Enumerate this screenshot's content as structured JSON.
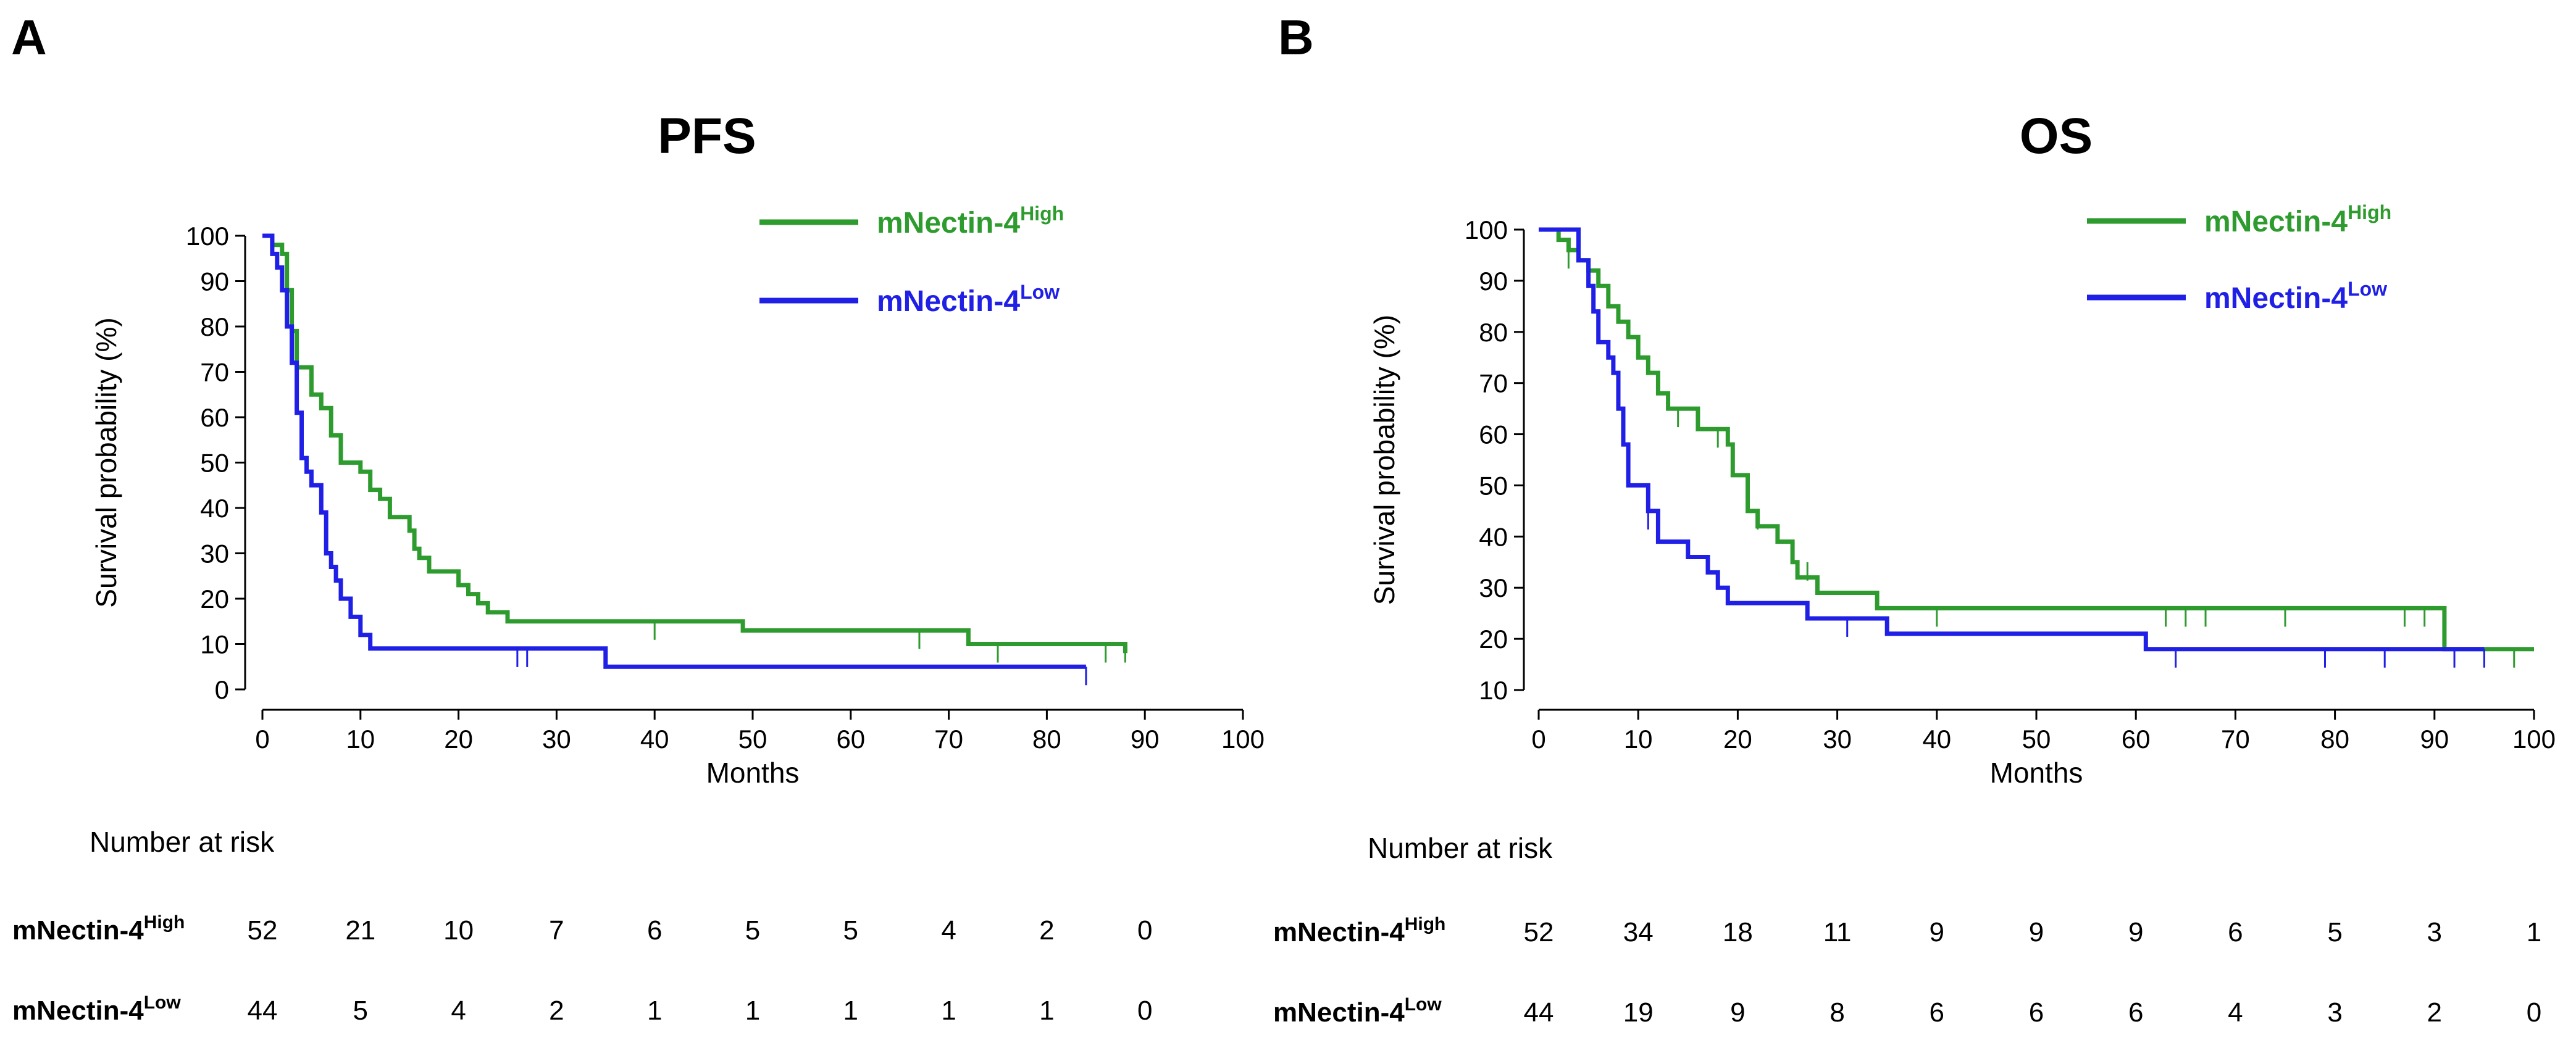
{
  "chart_data": [
    {
      "type": "line",
      "panel": "A",
      "title": "PFS",
      "xlabel": "Months",
      "ylabel": "Survival probability (%)",
      "xlim": [
        0,
        100
      ],
      "ylim": [
        0,
        100
      ],
      "xticks": [
        "0",
        "10",
        "20",
        "30",
        "40",
        "50",
        "60",
        "70",
        "80",
        "90",
        "100"
      ],
      "yticks": [
        "0",
        "10",
        "20",
        "30",
        "40",
        "50",
        "60",
        "70",
        "80",
        "90",
        "100"
      ],
      "legend_position": "top-right",
      "series": [
        {
          "name": "mNectin-4",
          "name_sup": "High",
          "color": "#2e9b2e",
          "points": [
            [
              0,
              100
            ],
            [
              1,
              100
            ],
            [
              1,
              98
            ],
            [
              2,
              98
            ],
            [
              2,
              96
            ],
            [
              2.5,
              96
            ],
            [
              2.5,
              88
            ],
            [
              3,
              88
            ],
            [
              3,
              79
            ],
            [
              3.5,
              79
            ],
            [
              3.5,
              71
            ],
            [
              5,
              71
            ],
            [
              5,
              65
            ],
            [
              6,
              65
            ],
            [
              6,
              62
            ],
            [
              7,
              62
            ],
            [
              7,
              56
            ],
            [
              8,
              56
            ],
            [
              8,
              50
            ],
            [
              10,
              50
            ],
            [
              10,
              48
            ],
            [
              11,
              48
            ],
            [
              11,
              44
            ],
            [
              12,
              44
            ],
            [
              12,
              42
            ],
            [
              13,
              42
            ],
            [
              13,
              38
            ],
            [
              15,
              38
            ],
            [
              15,
              35
            ],
            [
              15.5,
              35
            ],
            [
              15.5,
              31
            ],
            [
              16,
              31
            ],
            [
              16,
              29
            ],
            [
              17,
              29
            ],
            [
              17,
              26
            ],
            [
              20,
              26
            ],
            [
              20,
              23
            ],
            [
              21,
              23
            ],
            [
              21,
              21
            ],
            [
              22,
              21
            ],
            [
              22,
              19
            ],
            [
              23,
              19
            ],
            [
              23,
              17
            ],
            [
              25,
              17
            ],
            [
              25,
              15
            ],
            [
              49,
              15
            ],
            [
              49,
              13
            ],
            [
              72,
              13
            ],
            [
              72,
              10
            ],
            [
              88,
              10
            ],
            [
              88,
              8
            ]
          ],
          "censor_marks": [
            [
              40,
              15
            ],
            [
              67,
              13
            ],
            [
              75,
              10
            ],
            [
              86,
              10
            ],
            [
              88,
              10
            ]
          ]
        },
        {
          "name": "mNectin-4",
          "name_sup": "Low",
          "color": "#1f1fe6",
          "points": [
            [
              0,
              100
            ],
            [
              1,
              100
            ],
            [
              1,
              96
            ],
            [
              1.5,
              96
            ],
            [
              1.5,
              93
            ],
            [
              2,
              93
            ],
            [
              2,
              88
            ],
            [
              2.5,
              88
            ],
            [
              2.5,
              80
            ],
            [
              3,
              80
            ],
            [
              3,
              72
            ],
            [
              3.5,
              72
            ],
            [
              3.5,
              61
            ],
            [
              4,
              61
            ],
            [
              4,
              51
            ],
            [
              4.5,
              51
            ],
            [
              4.5,
              48
            ],
            [
              5,
              48
            ],
            [
              5,
              45
            ],
            [
              6,
              45
            ],
            [
              6,
              39
            ],
            [
              6.5,
              39
            ],
            [
              6.5,
              30
            ],
            [
              7,
              30
            ],
            [
              7,
              27
            ],
            [
              7.5,
              27
            ],
            [
              7.5,
              24
            ],
            [
              8,
              24
            ],
            [
              8,
              20
            ],
            [
              9,
              20
            ],
            [
              9,
              16
            ],
            [
              10,
              16
            ],
            [
              10,
              12
            ],
            [
              11,
              12
            ],
            [
              11,
              9
            ],
            [
              35,
              9
            ],
            [
              35,
              5
            ],
            [
              84,
              5
            ]
          ],
          "censor_marks": [
            [
              26,
              9
            ],
            [
              27,
              9
            ],
            [
              84,
              5
            ]
          ]
        }
      ],
      "risk_table": {
        "title": "Number at risk",
        "rows": [
          {
            "label": "mNectin-4",
            "label_sup": "High",
            "values": [
              "52",
              "21",
              "10",
              "7",
              "6",
              "5",
              "5",
              "4",
              "2",
              "0"
            ]
          },
          {
            "label": "mNectin-4",
            "label_sup": "Low",
            "values": [
              "44",
              "5",
              "4",
              "2",
              "1",
              "1",
              "1",
              "1",
              "1",
              "0"
            ]
          }
        ]
      }
    },
    {
      "type": "line",
      "panel": "B",
      "title": "OS",
      "xlabel": "Months",
      "ylabel": "Survival probability (%)",
      "xlim": [
        0,
        100
      ],
      "ylim": [
        10,
        100
      ],
      "xticks": [
        "0",
        "10",
        "20",
        "30",
        "40",
        "50",
        "60",
        "70",
        "80",
        "90",
        "100"
      ],
      "yticks": [
        "10",
        "20",
        "30",
        "40",
        "50",
        "60",
        "70",
        "80",
        "90",
        "100"
      ],
      "legend_position": "top-right",
      "series": [
        {
          "name": "mNectin-4",
          "name_sup": "High",
          "color": "#2e9b2e",
          "points": [
            [
              0,
              100
            ],
            [
              2,
              100
            ],
            [
              2,
              98
            ],
            [
              3,
              98
            ],
            [
              3,
              96
            ],
            [
              4,
              96
            ],
            [
              4,
              94
            ],
            [
              5,
              94
            ],
            [
              5,
              92
            ],
            [
              6,
              92
            ],
            [
              6,
              89
            ],
            [
              7,
              89
            ],
            [
              7,
              85
            ],
            [
              8,
              85
            ],
            [
              8,
              82
            ],
            [
              9,
              82
            ],
            [
              9,
              79
            ],
            [
              10,
              79
            ],
            [
              10,
              75
            ],
            [
              11,
              75
            ],
            [
              11,
              72
            ],
            [
              12,
              72
            ],
            [
              12,
              68
            ],
            [
              13,
              68
            ],
            [
              13,
              65
            ],
            [
              16,
              65
            ],
            [
              16,
              61
            ],
            [
              19,
              61
            ],
            [
              19,
              58
            ],
            [
              19.5,
              58
            ],
            [
              19.5,
              52
            ],
            [
              21,
              52
            ],
            [
              21,
              45
            ],
            [
              22,
              45
            ],
            [
              22,
              42
            ],
            [
              24,
              42
            ],
            [
              24,
              39
            ],
            [
              25.5,
              39
            ],
            [
              25.5,
              35
            ],
            [
              26,
              35
            ],
            [
              26,
              32
            ],
            [
              28,
              32
            ],
            [
              28,
              29
            ],
            [
              34,
              29
            ],
            [
              34,
              26
            ],
            [
              91,
              26
            ],
            [
              91,
              18
            ],
            [
              100,
              18
            ]
          ],
          "censor_marks": [
            [
              3,
              96
            ],
            [
              14,
              65
            ],
            [
              18,
              61
            ],
            [
              22,
              45
            ],
            [
              27,
              35
            ],
            [
              40,
              26
            ],
            [
              63,
              26
            ],
            [
              65,
              26
            ],
            [
              67,
              26
            ],
            [
              75,
              26
            ],
            [
              87,
              26
            ],
            [
              89,
              26
            ],
            [
              98,
              18
            ]
          ]
        },
        {
          "name": "mNectin-4",
          "name_sup": "Low",
          "color": "#1f1fe6",
          "points": [
            [
              0,
              100
            ],
            [
              4,
              100
            ],
            [
              4,
              94
            ],
            [
              5,
              94
            ],
            [
              5,
              89
            ],
            [
              5.5,
              89
            ],
            [
              5.5,
              84
            ],
            [
              6,
              84
            ],
            [
              6,
              78
            ],
            [
              7,
              78
            ],
            [
              7,
              75
            ],
            [
              7.5,
              75
            ],
            [
              7.5,
              72
            ],
            [
              8,
              72
            ],
            [
              8,
              65
            ],
            [
              8.5,
              65
            ],
            [
              8.5,
              58
            ],
            [
              9,
              58
            ],
            [
              9,
              50
            ],
            [
              11,
              50
            ],
            [
              11,
              45
            ],
            [
              12,
              45
            ],
            [
              12,
              39
            ],
            [
              15,
              39
            ],
            [
              15,
              36
            ],
            [
              17,
              36
            ],
            [
              17,
              33
            ],
            [
              18,
              33
            ],
            [
              18,
              30
            ],
            [
              19,
              30
            ],
            [
              19,
              27
            ],
            [
              27,
              27
            ],
            [
              27,
              24
            ],
            [
              35,
              24
            ],
            [
              35,
              21
            ],
            [
              61,
              21
            ],
            [
              61,
              18
            ],
            [
              95,
              18
            ]
          ],
          "censor_marks": [
            [
              11,
              45
            ],
            [
              31,
              24
            ],
            [
              64,
              18
            ],
            [
              79,
              18
            ],
            [
              85,
              18
            ],
            [
              92,
              18
            ],
            [
              95,
              18
            ]
          ]
        }
      ],
      "risk_table": {
        "title": "Number at risk",
        "rows": [
          {
            "label": "mNectin-4",
            "label_sup": "High",
            "values": [
              "52",
              "34",
              "18",
              "11",
              "9",
              "9",
              "9",
              "6",
              "5",
              "3",
              "1"
            ]
          },
          {
            "label": "mNectin-4",
            "label_sup": "Low",
            "values": [
              "44",
              "19",
              "9",
              "8",
              "6",
              "6",
              "6",
              "4",
              "3",
              "2",
              "0"
            ]
          }
        ]
      }
    }
  ]
}
